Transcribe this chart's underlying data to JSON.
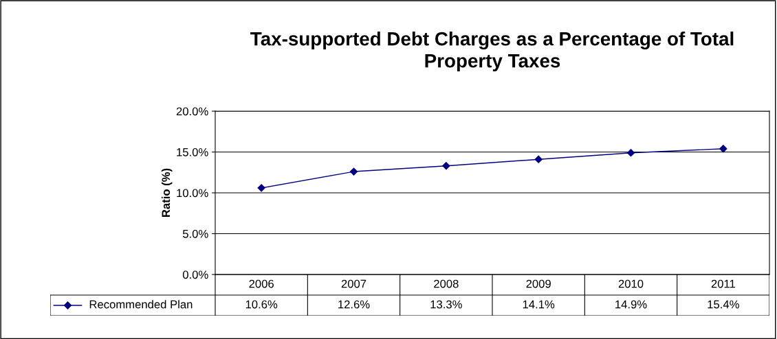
{
  "chart_data": {
    "type": "line",
    "title": "Tax-supported Debt Charges as a Percentage of Total\nProperty Taxes",
    "ylabel": "Ratio (%)",
    "categories": [
      "2006",
      "2007",
      "2008",
      "2009",
      "2010",
      "2011"
    ],
    "series": [
      {
        "name": "Recommended Plan",
        "color": "#000080",
        "values": [
          10.6,
          12.6,
          13.3,
          14.1,
          14.9,
          15.4
        ],
        "value_labels": [
          "10.6%",
          "12.6%",
          "13.3%",
          "14.1%",
          "14.9%",
          "15.4%"
        ]
      }
    ],
    "ylim": [
      0,
      20
    ],
    "yticks": [
      {
        "value": 0,
        "label": "0.0%"
      },
      {
        "value": 5,
        "label": "5.0%"
      },
      {
        "value": 10,
        "label": "10.0%"
      },
      {
        "value": 15,
        "label": "15.0%"
      },
      {
        "value": 20,
        "label": "20.0%"
      }
    ],
    "grid": "y",
    "legend": "bottom",
    "marker": "diamond",
    "line_style": "solid"
  }
}
